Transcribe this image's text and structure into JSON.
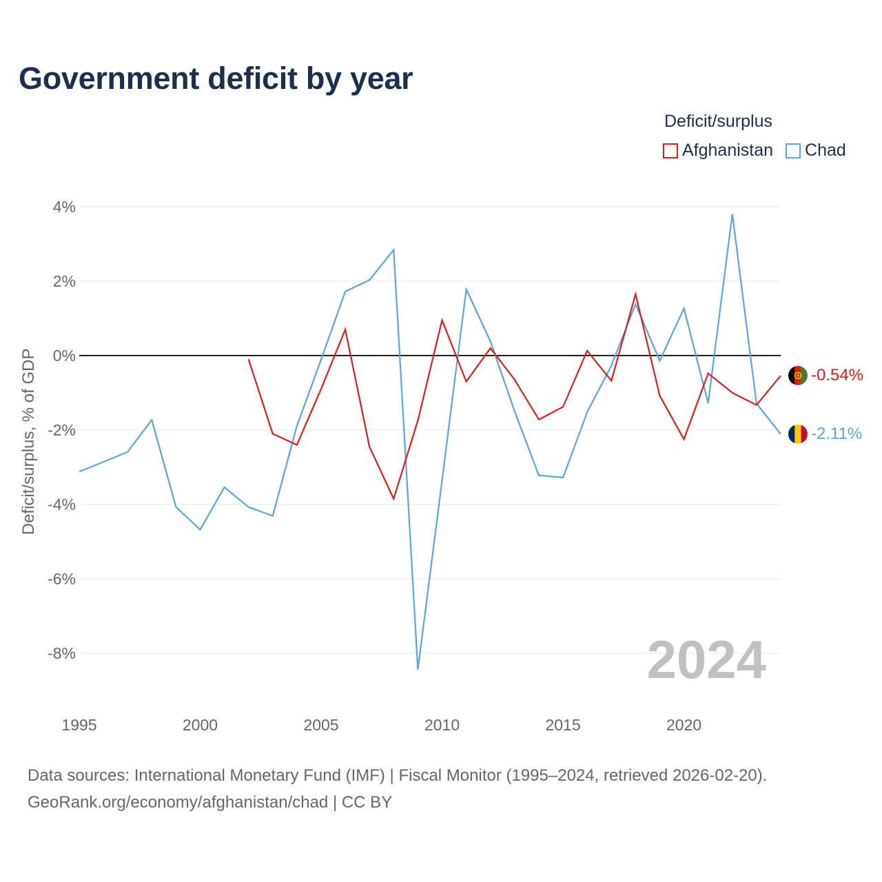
{
  "title": "Government deficit by year",
  "legend": {
    "title": "Deficit/surplus",
    "items": [
      {
        "label": "Afghanistan",
        "color": "#e31a1c"
      },
      {
        "label": "Chad",
        "color": "#5aa3e3"
      }
    ]
  },
  "source_line1": "Data sources: International Monetary Fund (IMF) | Fiscal Monitor (1995–2024, retrieved 2026-02-20).",
  "source_line2": "GeoRank.org/economy/afghanistan/chad | CC BY",
  "chart_data": {
    "type": "line",
    "title": "Government deficit by year",
    "xlabel": "",
    "ylabel": "Deficit/surplus, % of GDP",
    "xlim": [
      1995,
      2024
    ],
    "ylim": [
      -9,
      4
    ],
    "x_ticks": [
      1995,
      2000,
      2005,
      2010,
      2015,
      2020
    ],
    "y_ticks": [
      4,
      2,
      0,
      -2,
      -4,
      -6,
      -8
    ],
    "y_tick_labels": [
      "4%",
      "2%",
      "0%",
      "-2%",
      "-4%",
      "-6%",
      "-8%"
    ],
    "grid": true,
    "zero_line": true,
    "watermark_year": "2024",
    "series": [
      {
        "name": "Afghanistan",
        "color": "#e31a1c",
        "end_label": "-0.54%",
        "flag": "afghanistan-flag-icon",
        "points": [
          [
            2002,
            -0.1
          ],
          [
            2003,
            -2.1
          ],
          [
            2004,
            -2.4
          ],
          [
            2005,
            -0.9
          ],
          [
            2006,
            0.7
          ],
          [
            2007,
            -2.45
          ],
          [
            2008,
            -3.85
          ],
          [
            2009,
            -1.75
          ],
          [
            2010,
            0.95
          ],
          [
            2011,
            -0.7
          ],
          [
            2012,
            0.2
          ],
          [
            2013,
            -0.65
          ],
          [
            2014,
            -1.72
          ],
          [
            2015,
            -1.38
          ],
          [
            2016,
            0.13
          ],
          [
            2017,
            -0.68
          ],
          [
            2018,
            1.65
          ],
          [
            2019,
            -1.08
          ],
          [
            2020,
            -2.25
          ],
          [
            2021,
            -0.48
          ],
          [
            2022,
            -1.0
          ],
          [
            2023,
            -1.33
          ],
          [
            2024,
            -0.54
          ]
        ]
      },
      {
        "name": "Chad",
        "color": "#5aa3e3",
        "end_label": "-2.11%",
        "flag": "chad-flag-icon",
        "points": [
          [
            1995,
            -3.12
          ],
          [
            1996,
            -2.86
          ],
          [
            1997,
            -2.59
          ],
          [
            1998,
            -1.73
          ],
          [
            1999,
            -4.07
          ],
          [
            2000,
            -4.68
          ],
          [
            2001,
            -3.54
          ],
          [
            2002,
            -4.07
          ],
          [
            2003,
            -4.31
          ],
          [
            2004,
            -1.89
          ],
          [
            2005,
            -0.11
          ],
          [
            2006,
            1.72
          ],
          [
            2007,
            2.03
          ],
          [
            2008,
            2.84
          ],
          [
            2009,
            -8.44
          ],
          [
            2010,
            -3.35
          ],
          [
            2011,
            1.78
          ],
          [
            2012,
            0.38
          ],
          [
            2013,
            -1.5
          ],
          [
            2014,
            -3.22
          ],
          [
            2015,
            -3.28
          ],
          [
            2016,
            -1.52
          ],
          [
            2017,
            -0.27
          ],
          [
            2018,
            1.38
          ],
          [
            2019,
            -0.14
          ],
          [
            2020,
            1.27
          ],
          [
            2021,
            -1.28
          ],
          [
            2022,
            3.8
          ],
          [
            2023,
            -1.29
          ],
          [
            2024,
            -2.11
          ]
        ]
      }
    ]
  }
}
